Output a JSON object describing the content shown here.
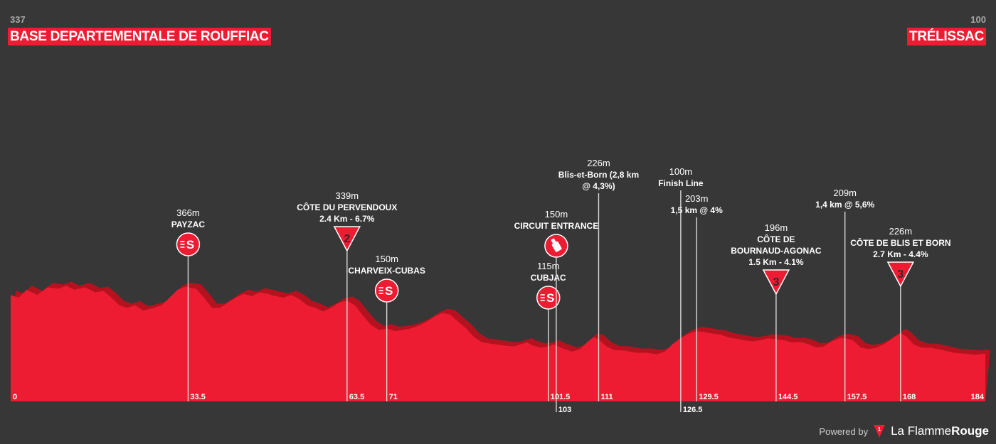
{
  "header": {
    "start_altitude": "337",
    "start_name": "BASE DEPARTEMENTALE DE ROUFFIAC",
    "finish_altitude": "100",
    "finish_name": "TRÉLISSAC"
  },
  "footer": {
    "powered_by": "Powered by",
    "brand_prefix": "La Flamme",
    "brand_suffix": "Rouge"
  },
  "colors": {
    "background": "#373737",
    "profile_fill": "#ee1c32",
    "profile_shade": "#b5121f",
    "marker": "#ee1c32",
    "text": "#ffffff"
  },
  "chart_data": {
    "type": "area",
    "x_unit": "km",
    "y_unit": "m",
    "xlim": [
      0,
      184
    ],
    "profile": [
      [
        0,
        350
      ],
      [
        1.5,
        345
      ],
      [
        3,
        360
      ],
      [
        5,
        350
      ],
      [
        7,
        365
      ],
      [
        9,
        362
      ],
      [
        10.5,
        368
      ],
      [
        12,
        360
      ],
      [
        14,
        365
      ],
      [
        16,
        355
      ],
      [
        17.5,
        358
      ],
      [
        19,
        345
      ],
      [
        20.5,
        330
      ],
      [
        22,
        325
      ],
      [
        23.5,
        330
      ],
      [
        25,
        320
      ],
      [
        27,
        325
      ],
      [
        28.5,
        330
      ],
      [
        30,
        345
      ],
      [
        31.5,
        360
      ],
      [
        33,
        366
      ],
      [
        35,
        362
      ],
      [
        36.5,
        345
      ],
      [
        38,
        325
      ],
      [
        39.5,
        325
      ],
      [
        41,
        335
      ],
      [
        42.5,
        345
      ],
      [
        44,
        352
      ],
      [
        45.5,
        348
      ],
      [
        47,
        355
      ],
      [
        48.5,
        352
      ],
      [
        50,
        348
      ],
      [
        51.5,
        345
      ],
      [
        53,
        350
      ],
      [
        54.5,
        342
      ],
      [
        56,
        330
      ],
      [
        57.5,
        325
      ],
      [
        59,
        318
      ],
      [
        60.5,
        325
      ],
      [
        62,
        335
      ],
      [
        63.5,
        339
      ],
      [
        65,
        330
      ],
      [
        66.5,
        310
      ],
      [
        68,
        292
      ],
      [
        69.5,
        282
      ],
      [
        71,
        285
      ],
      [
        72.5,
        280
      ],
      [
        74,
        282
      ],
      [
        75.5,
        285
      ],
      [
        77,
        290
      ],
      [
        78.5,
        298
      ],
      [
        80,
        308
      ],
      [
        81.5,
        315
      ],
      [
        83,
        312
      ],
      [
        84.5,
        298
      ],
      [
        86,
        285
      ],
      [
        87.5,
        268
      ],
      [
        89,
        258
      ],
      [
        91,
        255
      ],
      [
        93,
        252
      ],
      [
        95,
        250
      ],
      [
        96.5,
        255
      ],
      [
        97.5,
        258
      ],
      [
        98.5,
        252
      ],
      [
        100,
        248
      ],
      [
        101.5,
        250
      ],
      [
        102.5,
        254
      ],
      [
        104,
        247
      ],
      [
        106,
        240
      ],
      [
        107.5,
        245
      ],
      [
        109,
        260
      ],
      [
        110,
        268
      ],
      [
        111,
        264
      ],
      [
        112.5,
        250
      ],
      [
        114,
        243
      ],
      [
        116,
        242
      ],
      [
        118,
        238
      ],
      [
        120,
        238
      ],
      [
        122,
        235
      ],
      [
        123.5,
        240
      ],
      [
        125,
        255
      ],
      [
        126.5,
        266
      ],
      [
        128,
        275
      ],
      [
        129.5,
        280
      ],
      [
        131,
        278
      ],
      [
        132.5,
        275
      ],
      [
        134,
        273
      ],
      [
        135.5,
        268
      ],
      [
        137,
        265
      ],
      [
        138.5,
        262
      ],
      [
        140,
        260
      ],
      [
        141.5,
        262
      ],
      [
        143,
        266
      ],
      [
        144.5,
        264
      ],
      [
        146,
        262
      ],
      [
        147.5,
        258
      ],
      [
        149,
        259
      ],
      [
        150.5,
        255
      ],
      [
        152,
        248
      ],
      [
        153.5,
        250
      ],
      [
        155,
        260
      ],
      [
        156.5,
        266
      ],
      [
        157.5,
        266
      ],
      [
        159,
        262
      ],
      [
        160.5,
        248
      ],
      [
        162,
        245
      ],
      [
        163.5,
        248
      ],
      [
        165,
        255
      ],
      [
        166.5,
        266
      ],
      [
        168,
        276
      ],
      [
        169,
        270
      ],
      [
        170.5,
        254
      ],
      [
        172,
        248
      ],
      [
        174,
        247
      ],
      [
        176,
        243
      ],
      [
        178,
        238
      ],
      [
        180,
        236
      ],
      [
        182,
        234
      ],
      [
        184,
        236
      ]
    ],
    "km_ticks": [
      {
        "km": 0,
        "label": "0",
        "row": 1
      },
      {
        "km": 33.5,
        "label": "33.5",
        "row": 1
      },
      {
        "km": 63.5,
        "label": "63.5",
        "row": 1
      },
      {
        "km": 71,
        "label": "71",
        "row": 1
      },
      {
        "km": 101.5,
        "label": "101.5",
        "row": 1
      },
      {
        "km": 103,
        "label": "103",
        "row": 2
      },
      {
        "km": 111,
        "label": "111",
        "row": 1
      },
      {
        "km": 126.5,
        "label": "126.5",
        "row": 2
      },
      {
        "km": 129.5,
        "label": "129.5",
        "row": 1
      },
      {
        "km": 144.5,
        "label": "144.5",
        "row": 1
      },
      {
        "km": 157.5,
        "label": "157.5",
        "row": 1
      },
      {
        "km": 168,
        "label": "168",
        "row": 1
      },
      {
        "km": 184,
        "label": "184",
        "row": 1
      }
    ],
    "points": [
      {
        "km": 33.5,
        "alt": "366m",
        "lines": [
          "PAYZAC"
        ],
        "icon": "sprint",
        "level": 1
      },
      {
        "km": 63.5,
        "alt": "339m",
        "lines": [
          "CÔTE DU PERVENDOUX",
          "2.4 Km - 6.7%"
        ],
        "icon": "climb",
        "cat": "2",
        "level": 1
      },
      {
        "km": 71,
        "alt": "150m",
        "lines": [
          "CHARVEIX-CUBAS"
        ],
        "icon": "sprint",
        "level": 3
      },
      {
        "km": 101.5,
        "alt": "115m",
        "lines": [
          "CUBJAC"
        ],
        "icon": "sprint",
        "level": 4
      },
      {
        "km": 103,
        "alt": "150m",
        "lines": [
          "CIRCUIT ENTRANCE"
        ],
        "icon": "feed",
        "level": 2
      },
      {
        "km": 111,
        "alt": "226m",
        "lines": [
          "Blis-et-Born (2,8 km",
          "@ 4,3%)"
        ],
        "icon": "none",
        "level": 0
      },
      {
        "km": 126.5,
        "alt": "100m",
        "lines": [
          "Finish Line"
        ],
        "icon": "none",
        "level": 0
      },
      {
        "km": 129.5,
        "alt": "203m",
        "lines": [
          "1,5 km @ 4%"
        ],
        "icon": "none",
        "level": 1
      },
      {
        "km": 144.5,
        "alt": "196m",
        "lines": [
          "CÔTE DE",
          "BOURNAUD-AGONAC",
          "1.5 Km - 4.1%"
        ],
        "icon": "climb",
        "cat": "3",
        "level": 2
      },
      {
        "km": 157.5,
        "alt": "209m",
        "lines": [
          "1,4 km @ 5,6%"
        ],
        "icon": "none",
        "level": 1
      },
      {
        "km": 168,
        "alt": "226m",
        "lines": [
          "CÔTE DE BLIS ET BORN",
          "2.7 Km - 4.4%"
        ],
        "icon": "climb",
        "cat": "3",
        "level": 2
      }
    ]
  }
}
